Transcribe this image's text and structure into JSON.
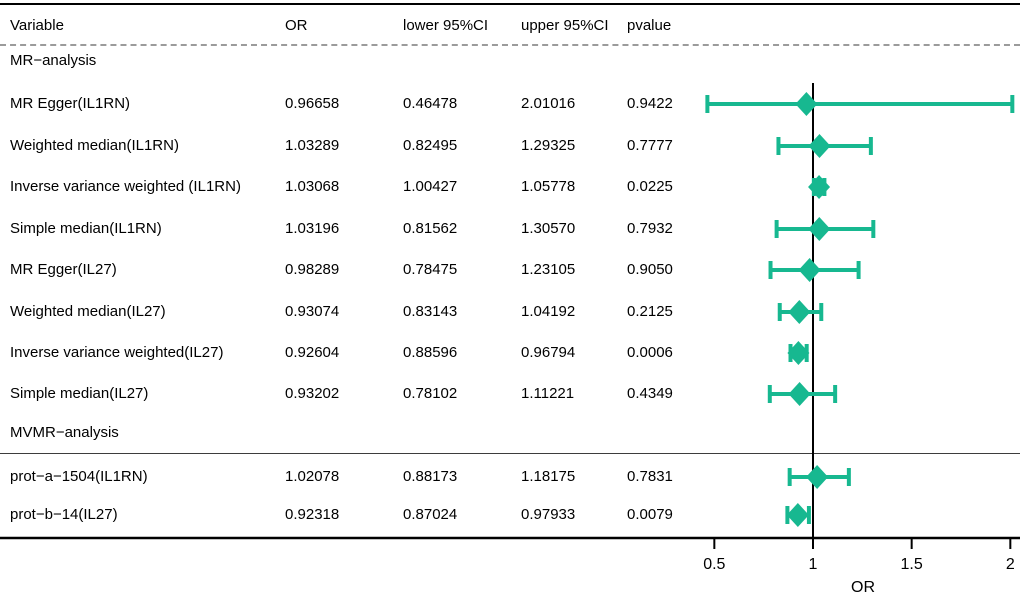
{
  "header": {
    "columns": [
      {
        "label": "Variable"
      },
      {
        "label": "OR"
      },
      {
        "label": "lower 95%CI"
      },
      {
        "label": "upper 95%CI"
      },
      {
        "label": "pvalue"
      }
    ]
  },
  "chart_data": {
    "type": "forest",
    "title": "",
    "xlabel": "OR",
    "x_axis": {
      "scale": "linear",
      "range": [
        0.5,
        2
      ],
      "ticks": [
        0.5,
        1,
        1.5,
        2
      ],
      "tick_labels": [
        "0.5",
        "1",
        "1.5",
        "2"
      ],
      "reference_line": 1,
      "label": "OR"
    },
    "groups": [
      {
        "label": "MR−analysis",
        "rows": [
          {
            "variable": "MR Egger(IL1RN)",
            "or": "0.96658",
            "lower": "0.46478",
            "upper": "2.01016",
            "pvalue": "0.9422"
          },
          {
            "variable": "Weighted median(IL1RN)",
            "or": "1.03289",
            "lower": "0.82495",
            "upper": "1.29325",
            "pvalue": "0.7777"
          },
          {
            "variable": "Inverse variance weighted (IL1RN)",
            "or": "1.03068",
            "lower": "1.00427",
            "upper": "1.05778",
            "pvalue": "0.0225"
          },
          {
            "variable": "Simple median(IL1RN)",
            "or": "1.03196",
            "lower": "0.81562",
            "upper": "1.30570",
            "pvalue": "0.7932"
          },
          {
            "variable": "MR Egger(IL27)",
            "or": "0.98289",
            "lower": "0.78475",
            "upper": "1.23105",
            "pvalue": "0.9050"
          },
          {
            "variable": "Weighted median(IL27)",
            "or": "0.93074",
            "lower": "0.83143",
            "upper": "1.04192",
            "pvalue": "0.2125"
          },
          {
            "variable": "Inverse variance weighted(IL27)",
            "or": "0.92604",
            "lower": "0.88596",
            "upper": "0.96794",
            "pvalue": "0.0006"
          },
          {
            "variable": "Simple median(IL27)",
            "or": "0.93202",
            "lower": "0.78102",
            "upper": "1.11221",
            "pvalue": "0.4349"
          }
        ]
      },
      {
        "label": "MVMR−analysis",
        "rows": [
          {
            "variable": "prot−a−1504(IL1RN)",
            "or": "1.02078",
            "lower": "0.88173",
            "upper": "1.18175",
            "pvalue": "0.7831"
          },
          {
            "variable": "prot−b−14(IL27)",
            "or": "0.92318",
            "lower": "0.87024",
            "upper": "0.97933",
            "pvalue": "0.0079"
          }
        ]
      }
    ],
    "legend": null,
    "grid": false
  },
  "colors": {
    "estimate": "#17B890",
    "reference_line": "#000000",
    "axis": "#000000",
    "dashed_rule": "#9B9B9B",
    "section_rule": "#3D3D3D",
    "text": "#000000"
  }
}
